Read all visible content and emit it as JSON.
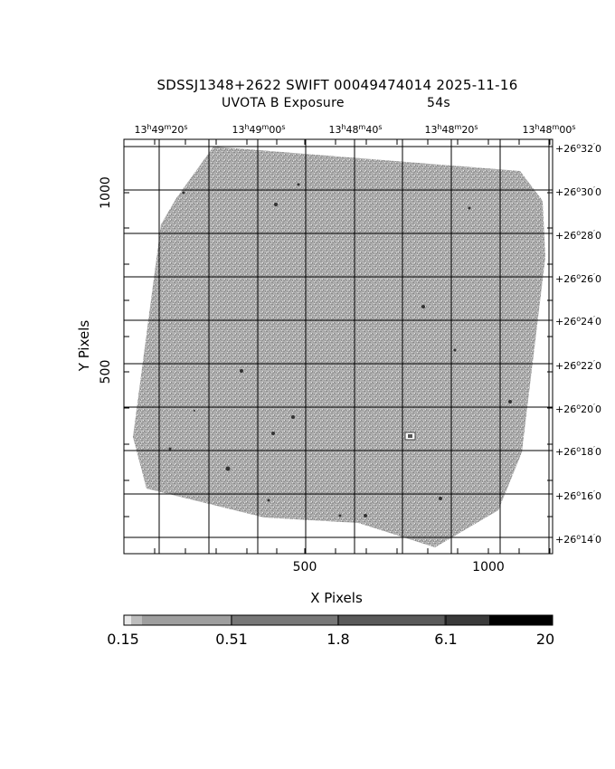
{
  "title": {
    "line1": "SDSSJ1348+2622 SWIFT 00049474014 2025-11-16",
    "line2": "UVOTA B Exposure",
    "line3": "54s"
  },
  "axes": {
    "xlabel": "X Pixels",
    "ylabel": "Y Pixels",
    "xticks": [
      "500",
      "1000"
    ],
    "yticks": [
      "500",
      "1000"
    ]
  },
  "ra_labels": [
    {
      "h": "13",
      "m": "49",
      "s": "20"
    },
    {
      "h": "13",
      "m": "49",
      "s": "00"
    },
    {
      "h": "13",
      "m": "48",
      "s": "40"
    },
    {
      "h": "13",
      "m": "48",
      "s": "20"
    },
    {
      "h": "13",
      "m": "48",
      "s": "00"
    }
  ],
  "dec_labels": [
    {
      "d": "+26",
      "m": "32",
      "s": "0"
    },
    {
      "d": "+26",
      "m": "30",
      "s": "0"
    },
    {
      "d": "+26",
      "m": "28",
      "s": "0"
    },
    {
      "d": "+26",
      "m": "26",
      "s": "0"
    },
    {
      "d": "+26",
      "m": "24",
      "s": "0"
    },
    {
      "d": "+26",
      "m": "22",
      "s": "0"
    },
    {
      "d": "+26",
      "m": "20",
      "s": "0"
    },
    {
      "d": "+26",
      "m": "18",
      "s": "0"
    },
    {
      "d": "+26",
      "m": "16",
      "s": "0"
    },
    {
      "d": "+26",
      "m": "14",
      "s": "0"
    }
  ],
  "colorbar": {
    "labels": [
      "0.15",
      "0.51",
      "1.8",
      "6.1",
      "20"
    ],
    "colors": [
      "#e8e8e8",
      "#bdbdbd",
      "#9e9e9e",
      "#777777",
      "#5a5a5a",
      "#3a3a3a",
      "#000000"
    ]
  },
  "image": {
    "field_color": "#a4a4a4",
    "grid_color": "#000000"
  }
}
